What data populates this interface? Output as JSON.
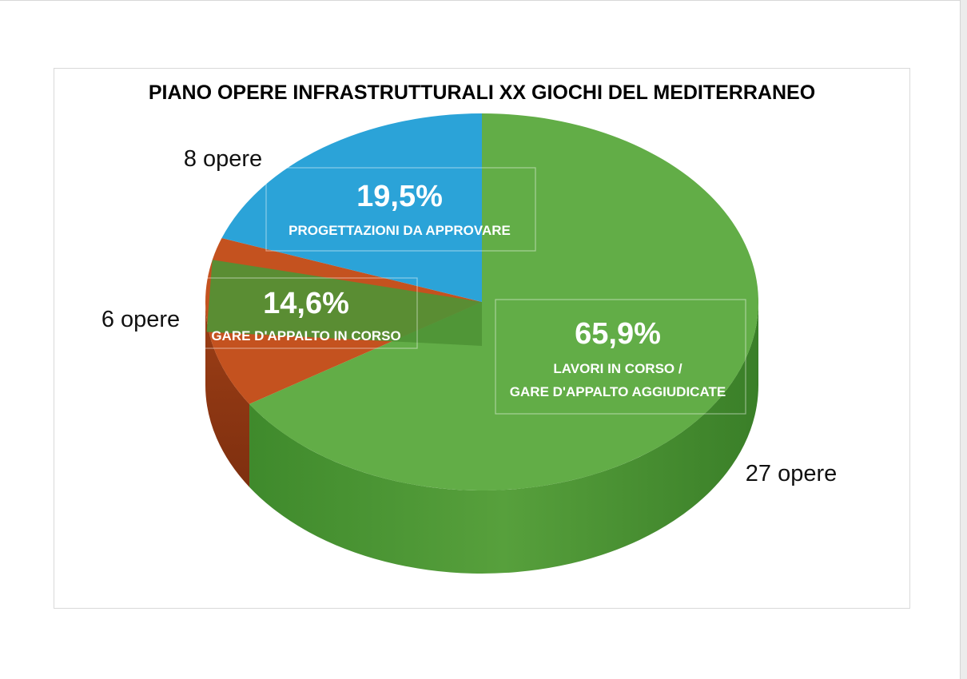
{
  "chart_data": {
    "type": "pie",
    "title": "PIANO OPERE INFRASTRUTTURALI XX GIOCHI DEL MEDITERRANEO",
    "slices": [
      {
        "lines": [
          "LAVORI IN CORSO  /",
          "GARE D'APPALTO AGGIUDICATE"
        ],
        "percent": 65.9,
        "percent_label": "65,9%",
        "count": 27,
        "count_label": "27 opere",
        "color": "#62ad47"
      },
      {
        "lines": [
          "GARE D'APPALTO IN CORSO"
        ],
        "percent": 14.6,
        "percent_label": "14,6%",
        "count": 6,
        "count_label": "6 opere",
        "color": "#c4521f"
      },
      {
        "lines": [
          "PROGETTAZIONI DA APPROVARE"
        ],
        "percent": 19.5,
        "percent_label": "19,5%",
        "count": 8,
        "count_label": "8 opere",
        "color": "#2ba3d8"
      }
    ],
    "style": "3d-tilted",
    "legend": "none"
  }
}
